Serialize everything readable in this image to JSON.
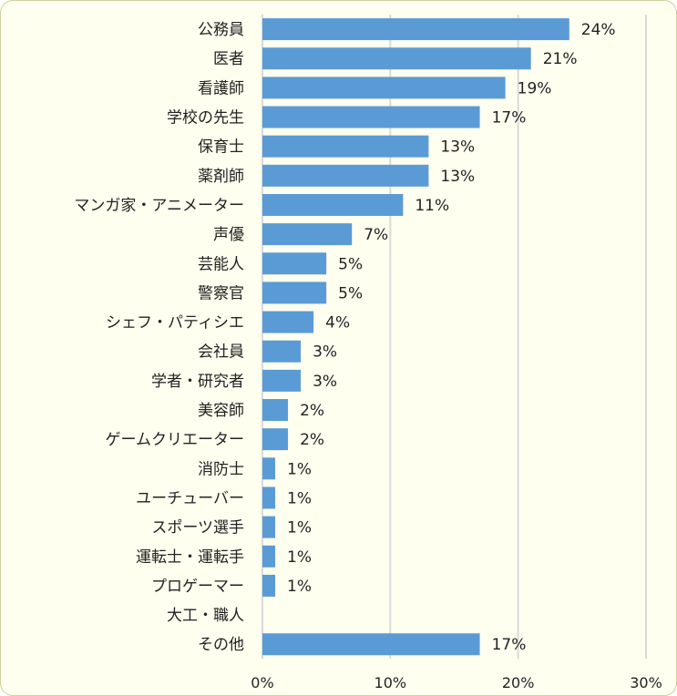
{
  "chart_data": {
    "type": "bar",
    "orientation": "horizontal",
    "categories": [
      "公務員",
      "医者",
      "看護師",
      "学校の先生",
      "保育士",
      "薬剤師",
      "マンガ家・アニメーター",
      "声優",
      "芸能人",
      "警察官",
      "シェフ・パティシエ",
      "会社員",
      "学者・研究者",
      "美容師",
      "ゲームクリエーター",
      "消防士",
      "ユーチューバー",
      "スポーツ選手",
      "運転士・運転手",
      "プロゲーマー",
      "大工・職人",
      "その他"
    ],
    "values": [
      24,
      21,
      19,
      17,
      13,
      13,
      11,
      7,
      5,
      5,
      4,
      3,
      3,
      2,
      2,
      1,
      1,
      1,
      1,
      1,
      0,
      17
    ],
    "data_labels": [
      "24%",
      "21%",
      "19%",
      "17%",
      "13%",
      "13%",
      "11%",
      "7%",
      "5%",
      "5%",
      "4%",
      "3%",
      "3%",
      "2%",
      "2%",
      "1%",
      "1%",
      "1%",
      "1%",
      "1%",
      "",
      "17%"
    ],
    "x_ticks": [
      0,
      10,
      20,
      30
    ],
    "x_tick_labels": [
      "0%",
      "10%",
      "20%",
      "30%"
    ],
    "xlim": [
      0,
      30
    ],
    "grid": true,
    "legend": "none",
    "colors": {
      "bar": "#5b9bd5",
      "grid": "#d9d9d9",
      "background": "#fffff0",
      "border": "#cfcf9f",
      "text": "#222222"
    }
  }
}
